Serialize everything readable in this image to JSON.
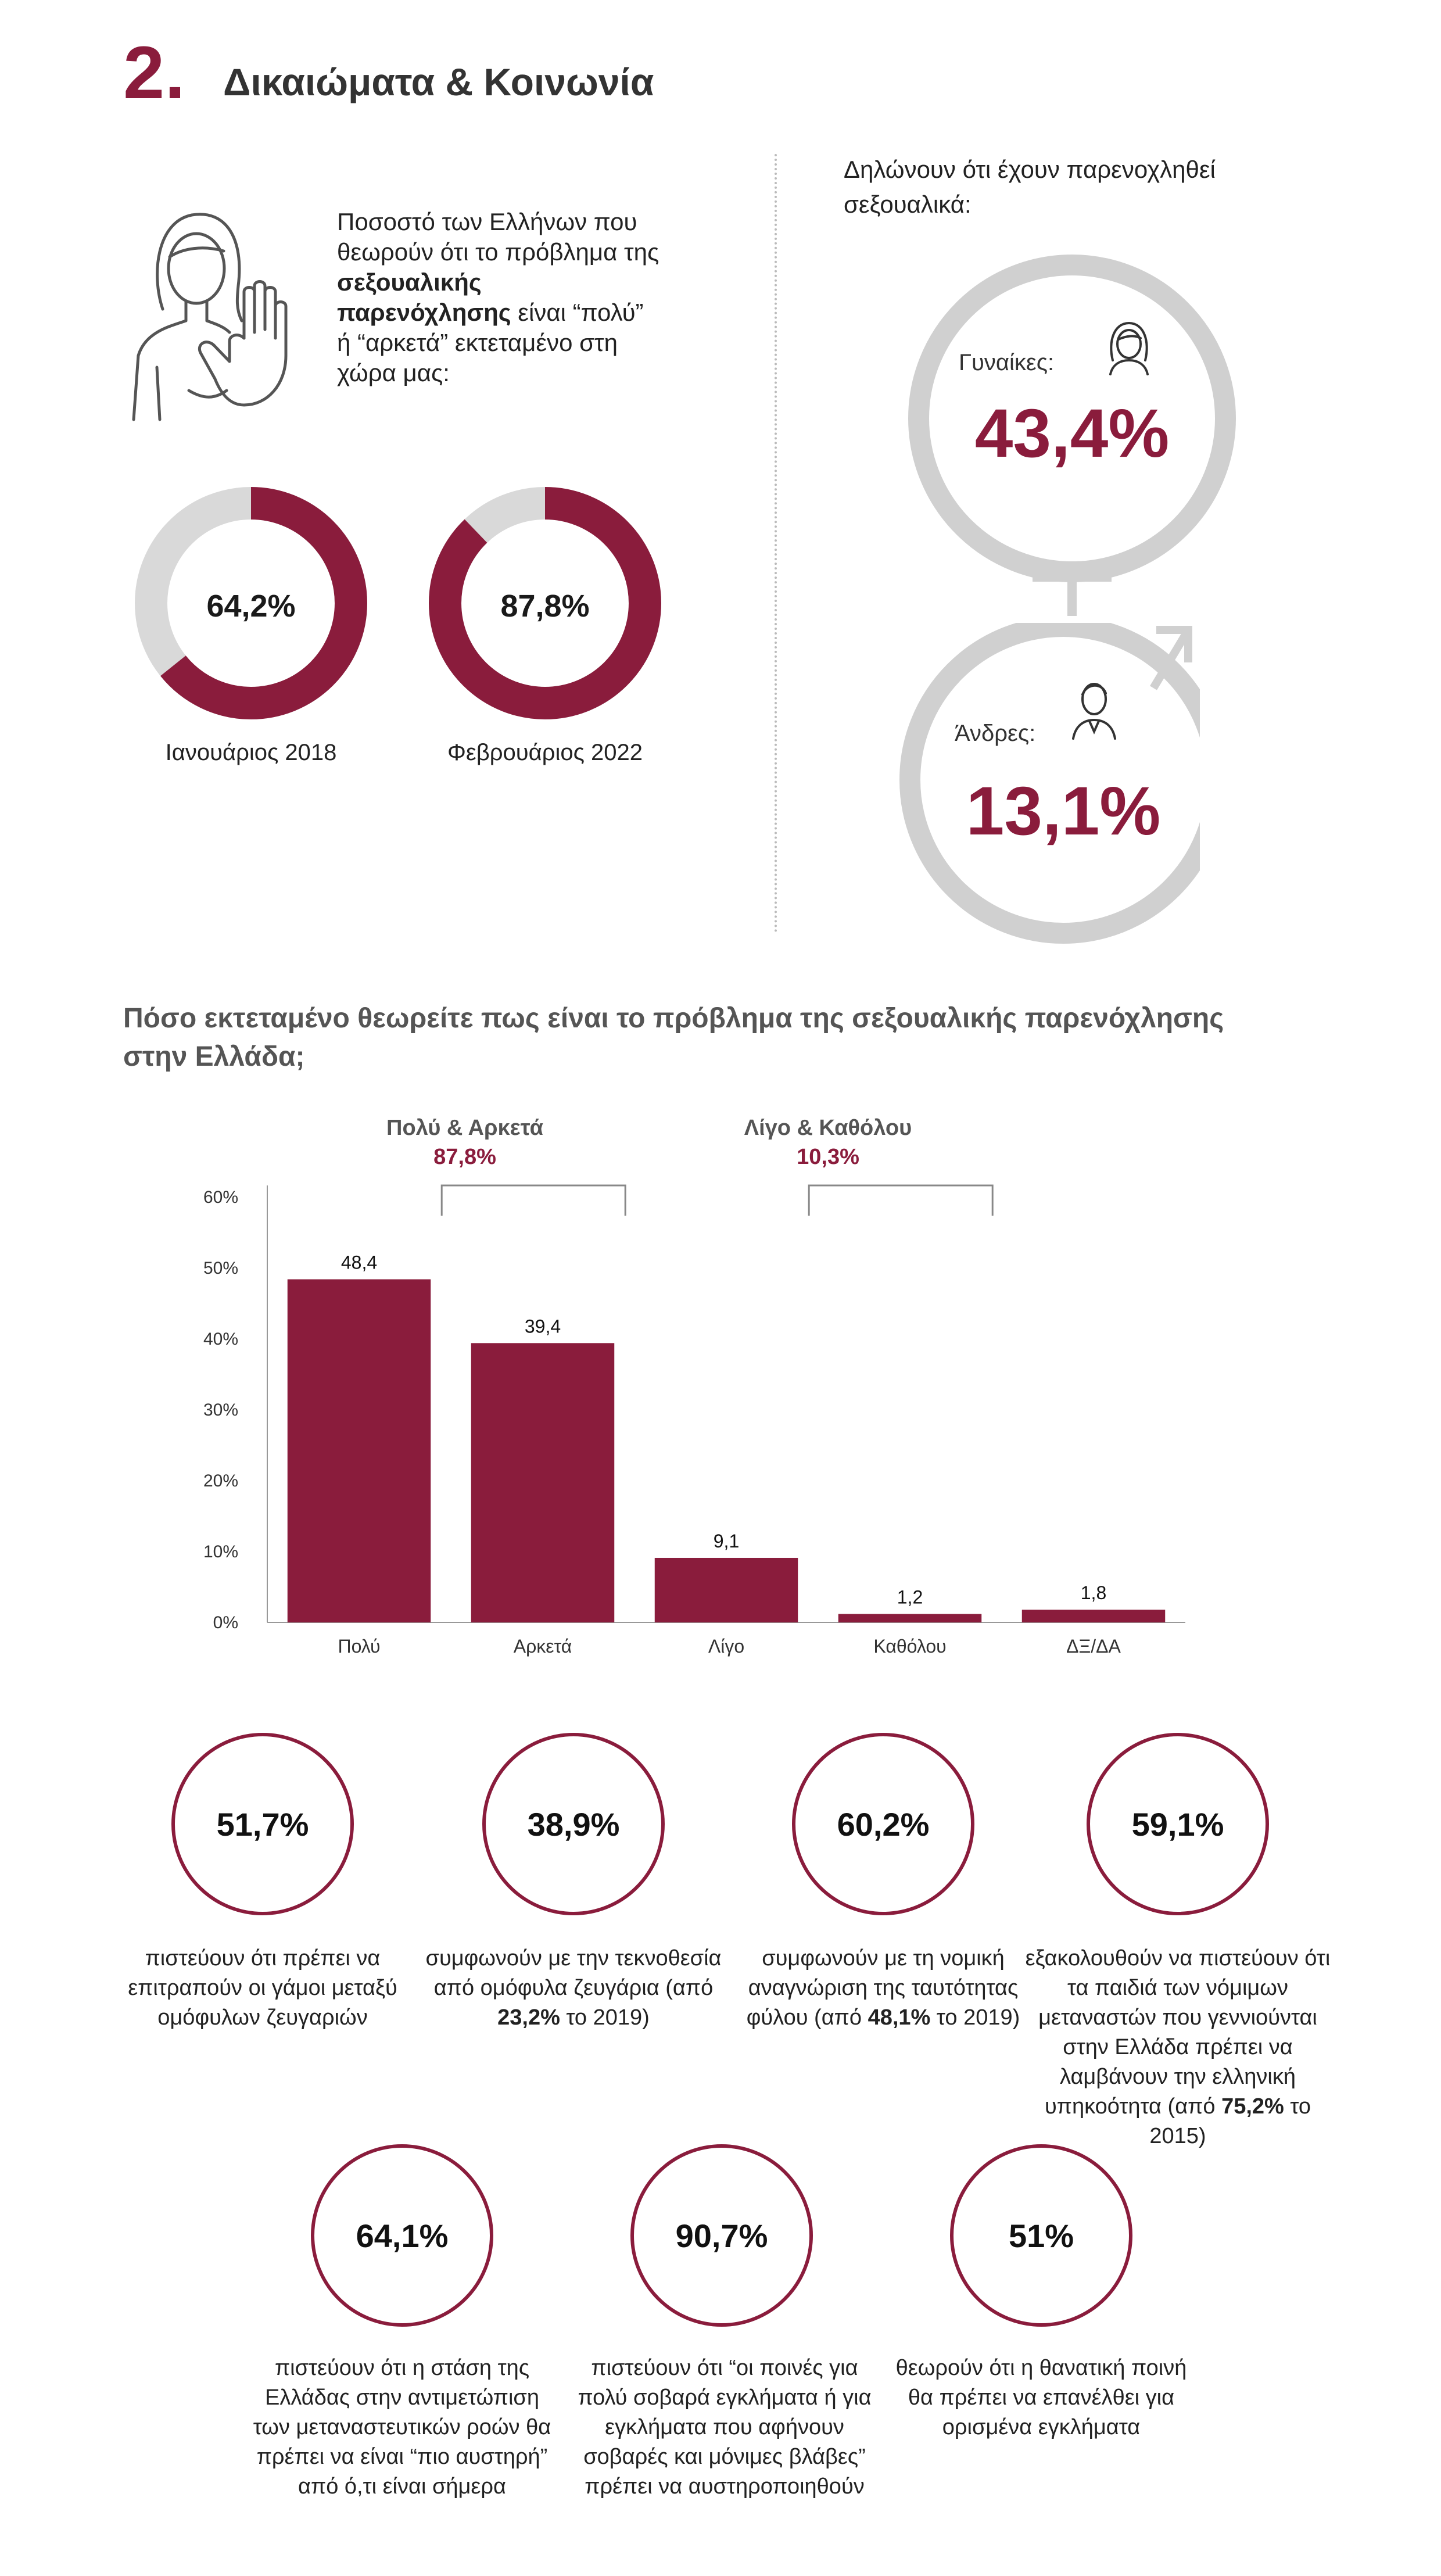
{
  "header": {
    "number": "2.",
    "title": "Δικαιώματα & Κοινωνία"
  },
  "intro": {
    "part1": "Ποσοστό των Ελλήνων που θεωρούν ότι το πρόβλημα της ",
    "bold": "σεξουαλικής παρενόχλησης",
    "part2": " είναι “πολύ” ή “αρκετά” εκτεταμένο στη χώρα μας:"
  },
  "donuts": [
    {
      "value": 64.2,
      "label_value": "64,2%",
      "label": "Ιανουάριος 2018"
    },
    {
      "value": 87.8,
      "label_value": "87,8%",
      "label": "Φεβρουάριος 2022"
    }
  ],
  "harassment": {
    "title": "Δηλώνουν ότι έχουν παρενοχληθεί σεξουαλικά:",
    "women": {
      "label": "Γυναίκες:",
      "value": "43,4%"
    },
    "men": {
      "label": "Άνδρες:",
      "value": "13,1%"
    }
  },
  "chart_data": {
    "type": "bar",
    "title": "Πόσο εκτεταμένο θεωρείτε πως είναι το πρόβλημα της σεξουαλικής παρενόχλησης στην Ελλάδα;",
    "categories": [
      "Πολύ",
      "Αρκετά",
      "Λίγο",
      "Καθόλου",
      "ΔΞ/ΔΑ"
    ],
    "values": [
      48.4,
      39.4,
      9.1,
      1.2,
      1.8
    ],
    "value_labels": [
      "48,4",
      "39,4",
      "9,1",
      "1,2",
      "1,8"
    ],
    "y_ticks": [
      "0%",
      "10%",
      "20%",
      "30%",
      "40%",
      "50%",
      "60%"
    ],
    "ylim": [
      0,
      60
    ],
    "color": "#8a1c3c",
    "groups": [
      {
        "label": "Πολύ & Αρκετά",
        "value": "87,8%"
      },
      {
        "label": "Λίγο & Καθόλου",
        "value": "10,3%"
      }
    ]
  },
  "stats": [
    {
      "value": "51,7%",
      "desc": "πιστεύουν ότι πρέπει να επιτραπούν οι γάμοι μεταξύ ομόφυλων ζευγαριών"
    },
    {
      "value": "38,9%",
      "desc_pre": "συμφωνούν με την τεκνοθεσία από ομόφυλα ζευγάρια (από ",
      "desc_bold": "23,2%",
      "desc_post": " το 2019)"
    },
    {
      "value": "60,2%",
      "desc_pre": "συμφωνούν με τη νομική αναγνώριση της ταυτότητας φύλου (από ",
      "desc_bold": "48,1%",
      "desc_post": " το 2019)"
    },
    {
      "value": "59,1%",
      "desc_pre": "εξακολουθούν να πιστεύουν ότι τα παιδιά των νόμιμων μεταναστών που γεννιούνται στην Ελλάδα πρέπει να λαμβάνουν την ελληνική υπηκοότητα (από ",
      "desc_bold": "75,2%",
      "desc_post": " το 2015)"
    },
    {
      "value": "64,1%",
      "desc": "πιστεύουν ότι η στάση της Ελλάδας στην αντιμετώπιση των μεταναστευτικών ροών θα πρέπει να είναι “πιο αυστηρή” από ό,τι είναι σήμερα"
    },
    {
      "value": "90,7%",
      "desc": "πιστεύουν ότι “οι ποινές για πολύ σοβαρά εγκλήματα ή για εγκλήματα που αφήνουν σοβαρές και μόνιμες βλάβες” πρέπει να αυστηροποιηθούν"
    },
    {
      "value": "51%",
      "desc": "θεωρούν ότι η θανατική ποινή θα πρέπει να επανέλθει για ορισμένα εγκλήματα"
    }
  ],
  "colors": {
    "accent": "#8a1c3c",
    "track": "#d9d9d9",
    "symbol": "#d0d0d0"
  }
}
